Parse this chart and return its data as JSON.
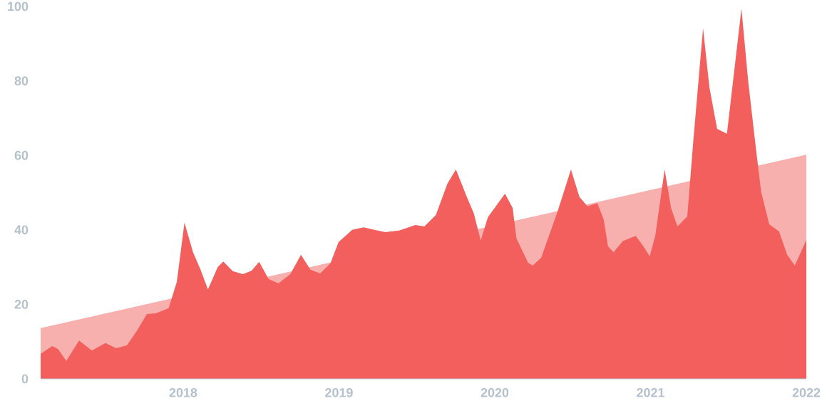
{
  "chart_data": {
    "type": "area",
    "xlim": [
      "2017-02-01",
      "2022-01-01"
    ],
    "xticks": [
      "2018",
      "2019",
      "2020",
      "2021",
      "2022"
    ],
    "ylim": [
      0,
      100
    ],
    "yticks": [
      0,
      20,
      40,
      60,
      80,
      100
    ],
    "grid": false,
    "legend": false,
    "series": [
      {
        "color": "#f8b0ae",
        "x": [
          "2017-02-01",
          "2022-01-01"
        ],
        "values": [
          13.6,
          60.2
        ]
      },
      {
        "color": "#f25f5c",
        "x": [
          "2017-02-01",
          "2017-02-28",
          "2017-03-14",
          "2017-04-02",
          "2017-05-02",
          "2017-06-01",
          "2017-07-03",
          "2017-07-28",
          "2017-08-22",
          "2017-09-13",
          "2017-10-08",
          "2017-10-29",
          "2017-11-28",
          "2017-12-17",
          "2018-01-04",
          "2018-01-24",
          "2018-02-10",
          "2018-02-28",
          "2018-03-23",
          "2018-04-05",
          "2018-04-27",
          "2018-05-21",
          "2018-06-10",
          "2018-06-28",
          "2018-07-20",
          "2018-08-12",
          "2018-09-09",
          "2018-10-04",
          "2018-10-26",
          "2018-11-18",
          "2018-12-12",
          "2018-12-31",
          "2019-02-01",
          "2019-02-28",
          "2019-03-25",
          "2019-04-19",
          "2019-05-22",
          "2019-06-29",
          "2019-07-20",
          "2019-08-16",
          "2019-09-12",
          "2019-10-02",
          "2019-10-27",
          "2019-11-13",
          "2019-11-29",
          "2019-12-16",
          "2020-01-25",
          "2020-02-12",
          "2020-02-21",
          "2020-03-19",
          "2020-03-30",
          "2020-04-19",
          "2020-05-28",
          "2020-06-28",
          "2020-07-18",
          "2020-08-06",
          "2020-08-29",
          "2020-09-13",
          "2020-09-23",
          "2020-10-06",
          "2020-10-28",
          "2020-11-27",
          "2020-12-15",
          "2020-12-30",
          "2021-01-12",
          "2021-02-03",
          "2021-02-18",
          "2021-03-05",
          "2021-03-28",
          "2021-04-12",
          "2021-05-04",
          "2021-05-19",
          "2021-06-06",
          "2021-06-29",
          "2021-07-13",
          "2021-08-02",
          "2021-08-18",
          "2021-09-04",
          "2021-09-17",
          "2021-10-06",
          "2021-10-29",
          "2021-11-17",
          "2021-12-05",
          "2022-01-01"
        ],
        "values": [
          6.7,
          8.8,
          8.0,
          4.8,
          10.3,
          7.6,
          9.6,
          8.2,
          9.0,
          12.6,
          17.4,
          17.6,
          19.0,
          26.0,
          41.9,
          34.0,
          29.5,
          24.0,
          30.0,
          31.5,
          28.9,
          28.1,
          29.0,
          31.4,
          26.8,
          25.6,
          28.1,
          33.3,
          29.3,
          28.3,
          31.0,
          36.7,
          40.0,
          40.7,
          40.0,
          39.4,
          39.8,
          41.3,
          40.9,
          44.0,
          52.4,
          56.2,
          49.0,
          44.4,
          37.1,
          43.4,
          49.7,
          45.9,
          37.7,
          31.2,
          30.4,
          32.5,
          45.1,
          56.2,
          48.8,
          46.3,
          47.2,
          42.8,
          35.6,
          34.0,
          37.0,
          38.4,
          35.6,
          32.9,
          38.4,
          56.2,
          45.9,
          40.9,
          43.6,
          65.0,
          94.1,
          78.2,
          67.1,
          65.8,
          79.7,
          99.4,
          79.7,
          62.7,
          50.3,
          41.5,
          39.6,
          33.3,
          30.4,
          37.3
        ]
      }
    ]
  }
}
